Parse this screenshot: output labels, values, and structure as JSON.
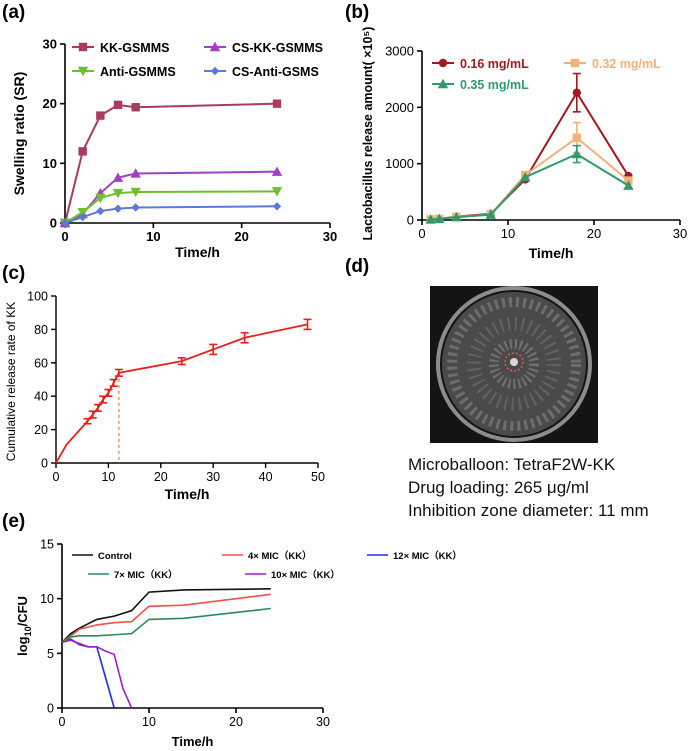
{
  "panels": {
    "a": {
      "tag": "(a)"
    },
    "b": {
      "tag": "(b)"
    },
    "c": {
      "tag": "(c)"
    },
    "d": {
      "tag": "(d)"
    },
    "e": {
      "tag": "(e)"
    }
  },
  "panel_d": {
    "caption_lines": [
      "Microballoon: TetraF2W-KK",
      "Drug loading: 265 μg/ml",
      "Inhibition zone diameter: 11 mm"
    ],
    "colors": {
      "dish_bg": "#141414",
      "dish_rim": "#8c8c8c",
      "zone": "#e05050"
    }
  },
  "chart_data": [
    {
      "id": "a",
      "type": "line",
      "title": "",
      "xlabel": "Time/h",
      "ylabel": "Swelling ratio (SR)",
      "xlim": [
        0,
        30
      ],
      "ylim": [
        0,
        30
      ],
      "xticks": [
        0,
        10,
        20,
        30
      ],
      "yticks": [
        0,
        10,
        20,
        30
      ],
      "series": [
        {
          "name": "KK-GSMMS",
          "color": "#a83c5a",
          "marker": "square",
          "x": [
            0,
            2,
            4,
            6,
            8,
            24
          ],
          "y": [
            0,
            12,
            18,
            19.8,
            19.4,
            20
          ]
        },
        {
          "name": "CS-KK-GSMMS",
          "color": "#a040c0",
          "marker": "triangle-up",
          "x": [
            0,
            2,
            4,
            6,
            8,
            24
          ],
          "y": [
            0,
            1.5,
            5,
            7.6,
            8.3,
            8.6
          ]
        },
        {
          "name": "Anti-GSMMS",
          "color": "#6cc030",
          "marker": "triangle-down",
          "x": [
            0,
            2,
            4,
            6,
            8,
            24
          ],
          "y": [
            0,
            1.8,
            4.2,
            5,
            5.2,
            5.3
          ]
        },
        {
          "name": "CS-Anti-GSMS",
          "color": "#5a7ad6",
          "marker": "diamond",
          "x": [
            0,
            2,
            4,
            6,
            8,
            24
          ],
          "y": [
            0,
            1,
            2,
            2.4,
            2.6,
            2.8
          ]
        }
      ]
    },
    {
      "id": "b",
      "type": "line",
      "title": "",
      "xlabel": "Time/h",
      "ylabel": "Lactobacillus release amount( ×10⁵)",
      "xlim": [
        0,
        30
      ],
      "ylim": [
        0,
        3000
      ],
      "xticks": [
        0,
        10,
        20,
        30
      ],
      "yticks": [
        0,
        1000,
        2000,
        3000
      ],
      "series": [
        {
          "name": "0.16 mg/mL",
          "color": "#a01a22",
          "marker": "circle",
          "x": [
            1,
            2,
            4,
            8,
            12,
            18,
            24
          ],
          "y": [
            10,
            20,
            60,
            110,
            720,
            2260,
            780
          ],
          "err": [
            0,
            0,
            0,
            0,
            0,
            340,
            0
          ]
        },
        {
          "name": "0.32 mg/mL",
          "color": "#f2b27a",
          "marker": "square",
          "x": [
            1,
            2,
            4,
            8,
            12,
            18,
            24
          ],
          "y": [
            10,
            20,
            55,
            100,
            800,
            1460,
            700
          ],
          "err": [
            0,
            0,
            0,
            0,
            0,
            270,
            0
          ]
        },
        {
          "name": "0.35 mg/mL",
          "color": "#2f9a6a",
          "marker": "triangle-up",
          "x": [
            1,
            2,
            4,
            8,
            12,
            18,
            24
          ],
          "y": [
            10,
            20,
            50,
            95,
            760,
            1170,
            610
          ],
          "err": [
            0,
            0,
            0,
            0,
            0,
            150,
            0
          ]
        }
      ]
    },
    {
      "id": "c",
      "type": "line",
      "title": "",
      "xlabel": "Time/h",
      "ylabel": "Cumulative release rate of KK",
      "xlim": [
        0,
        50
      ],
      "ylim": [
        0,
        100
      ],
      "xticks": [
        0,
        10,
        20,
        30,
        40,
        50
      ],
      "yticks": [
        0,
        20,
        40,
        60,
        80,
        100
      ],
      "vline_x": 12,
      "series": [
        {
          "name": "KK",
          "color": "#e8201a",
          "x": [
            0,
            2,
            6,
            7,
            8,
            9,
            10,
            11,
            12,
            24,
            30,
            36,
            48
          ],
          "y": [
            0,
            11,
            25,
            29,
            33,
            38,
            42,
            48,
            54,
            61,
            68,
            75,
            83
          ],
          "err": [
            0,
            0,
            1.5,
            2,
            2,
            2,
            2,
            2,
            2,
            2,
            3,
            3,
            3
          ]
        }
      ]
    },
    {
      "id": "e",
      "type": "line",
      "title": "",
      "xlabel": "Time/h",
      "ylabel_main": "log",
      "ylabel_sub": "10",
      "ylabel_tail": "/CFU",
      "xlim": [
        0,
        30
      ],
      "ylim": [
        0,
        15
      ],
      "xticks": [
        0,
        10,
        20,
        30
      ],
      "yticks": [
        0,
        5,
        10,
        15
      ],
      "series": [
        {
          "name": "Control",
          "color": "#111111",
          "x": [
            0,
            1,
            2,
            4,
            6,
            8,
            10,
            14,
            24
          ],
          "y": [
            6,
            6.8,
            7.3,
            8.1,
            8.4,
            8.9,
            10.6,
            10.8,
            10.9
          ]
        },
        {
          "name": "4× MIC（KK）",
          "color": "#f05050",
          "x": [
            0,
            1,
            2,
            4,
            6,
            8,
            10,
            14,
            24
          ],
          "y": [
            6,
            6.6,
            7.2,
            7.6,
            7.8,
            7.9,
            9.3,
            9.4,
            10.4
          ]
        },
        {
          "name": "12× MIC（KK）",
          "color": "#2030e0",
          "x": [
            0,
            1,
            2,
            3,
            4,
            5,
            6
          ],
          "y": [
            6,
            6.3,
            5.8,
            5.6,
            5.6,
            2.8,
            0
          ]
        },
        {
          "name": "7× MIC（KK）",
          "color": "#2c8a5a",
          "x": [
            0,
            1,
            2,
            4,
            6,
            8,
            10,
            14,
            24
          ],
          "y": [
            6,
            6.5,
            6.6,
            6.6,
            6.7,
            6.8,
            8.1,
            8.2,
            9.1
          ]
        },
        {
          "name": "10× MIC（KK）",
          "color": "#a020c8",
          "x": [
            0,
            1,
            2,
            3,
            4,
            5,
            6,
            7,
            8
          ],
          "y": [
            6,
            6.2,
            5.9,
            5.6,
            5.6,
            5.2,
            4.9,
            1.8,
            0
          ]
        }
      ]
    }
  ]
}
